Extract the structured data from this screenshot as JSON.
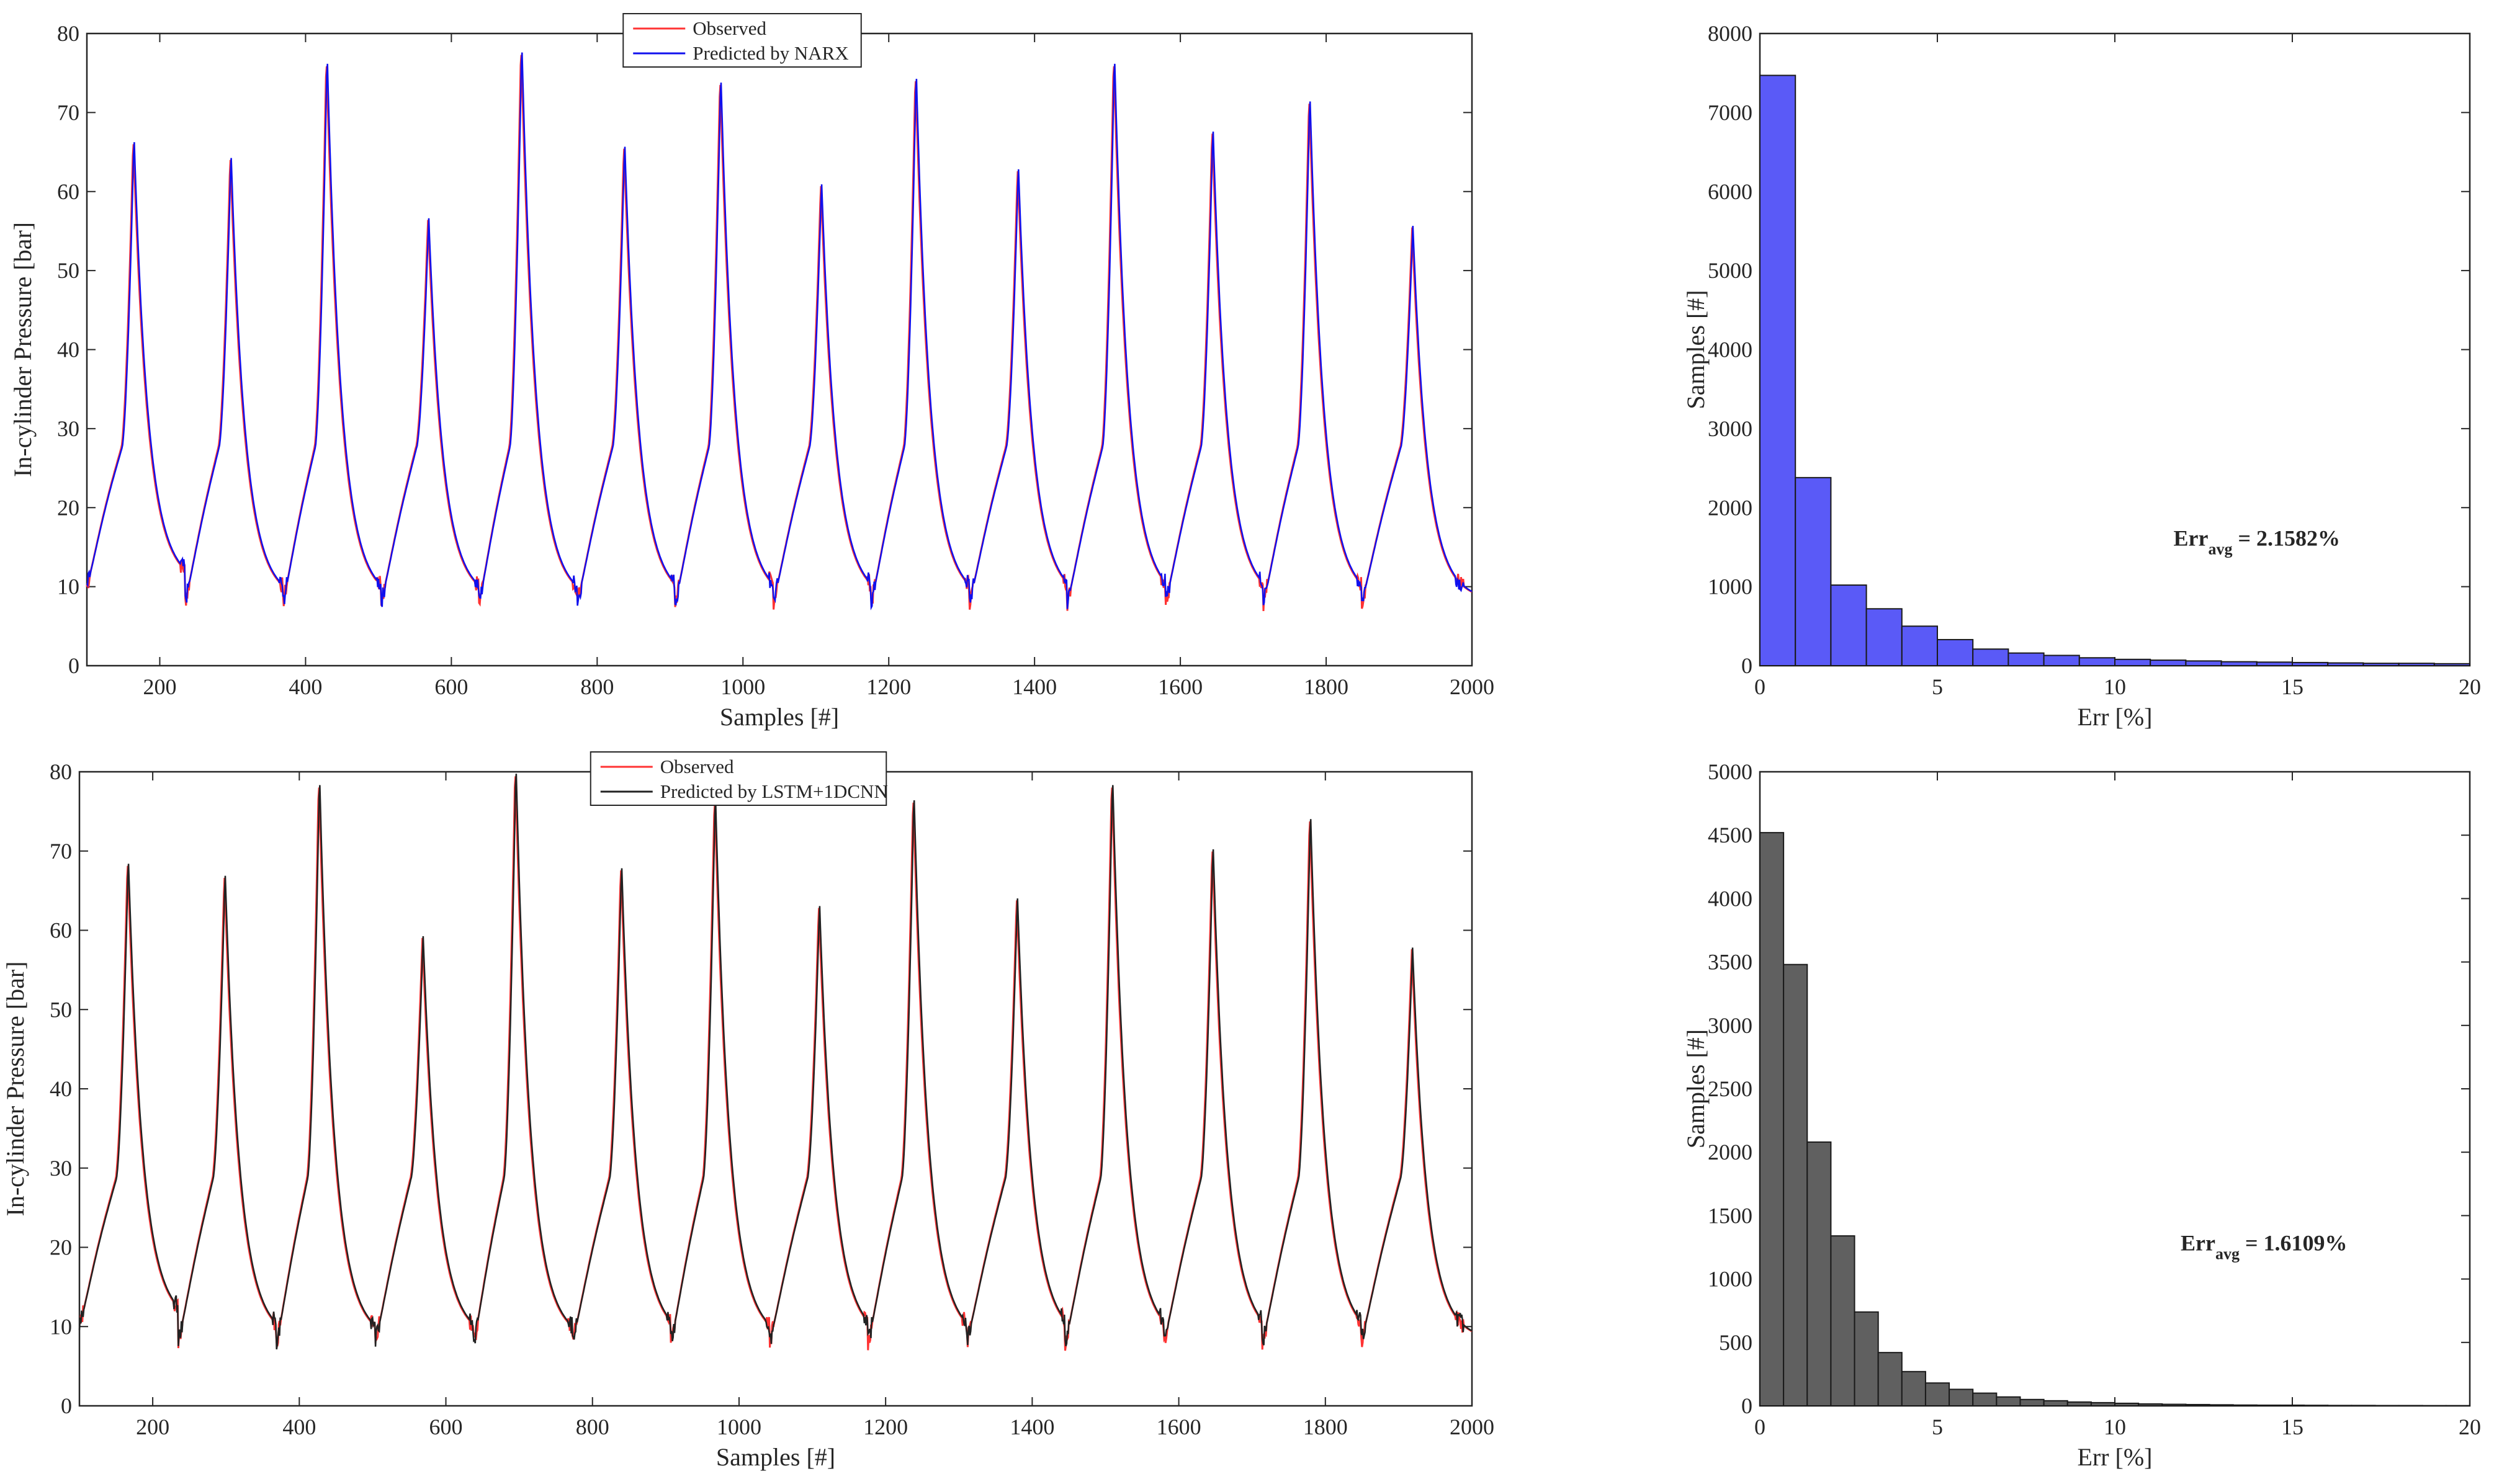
{
  "chart_data": [
    {
      "id": "p1",
      "type": "line",
      "xlabel": "Samples [#]",
      "ylabel": "In-cylinder Pressure [bar]",
      "xlim": [
        100,
        2000
      ],
      "ylim": [
        0,
        80
      ],
      "xticks": [
        200,
        400,
        600,
        800,
        1000,
        1200,
        1400,
        1600,
        1800,
        2000
      ],
      "yticks": [
        0,
        10,
        20,
        30,
        40,
        50,
        60,
        70,
        80
      ],
      "legend_position": "top-center",
      "colors": {
        "observed": "#ff3333",
        "predicted": "#1010ee"
      },
      "series": [
        {
          "name": "Observed",
          "color": "#ff3333"
        },
        {
          "name": "Predicted by NARX",
          "color": "#1010ee"
        }
      ],
      "cycle_start": 100,
      "cycle_period": 134.5,
      "peaks": [
        {
          "x": 163,
          "y": 64.5
        },
        {
          "x": 296,
          "y": 62
        },
        {
          "x": 428,
          "y": 74.5
        },
        {
          "x": 567,
          "y": 54
        },
        {
          "x": 695,
          "y": 76
        },
        {
          "x": 836,
          "y": 63.5
        },
        {
          "x": 968,
          "y": 72
        },
        {
          "x": 1106,
          "y": 58.5
        },
        {
          "x": 1236,
          "y": 72.5
        },
        {
          "x": 1376,
          "y": 60.5
        },
        {
          "x": 1508,
          "y": 74.5
        },
        {
          "x": 1643,
          "y": 65.5
        },
        {
          "x": 1776,
          "y": 69.5
        },
        {
          "x": 1917,
          "y": 53
        }
      ],
      "troughs": [
        10,
        8,
        8,
        8,
        8,
        8,
        8,
        8,
        8,
        8,
        8,
        8,
        8,
        8,
        8,
        8
      ],
      "shoulder_level": 27.5
    },
    {
      "id": "h1",
      "type": "bar",
      "subtype": "histogram",
      "xlabel": "Err [%]",
      "ylabel": "Samples [#]",
      "xlim": [
        0,
        20
      ],
      "ylim": [
        0,
        8000
      ],
      "xticks": [
        0,
        5,
        10,
        15,
        20
      ],
      "yticks": [
        0,
        1000,
        2000,
        3000,
        4000,
        5000,
        6000,
        7000,
        8000
      ],
      "bin_width": 1,
      "bin_start": 0,
      "values": [
        7470,
        2380,
        1020,
        720,
        500,
        330,
        210,
        160,
        130,
        100,
        80,
        70,
        60,
        50,
        45,
        40,
        35,
        30,
        30,
        25
      ],
      "color": "#5a5af7",
      "annotation": {
        "text": "Err",
        "sub": "avg",
        "suffix": " = 2.1582%"
      }
    },
    {
      "id": "p2",
      "type": "line",
      "xlabel": "Samples [#]",
      "ylabel": "In-cylinder Pressure [bar]",
      "xlim": [
        100,
        2000
      ],
      "ylim": [
        0,
        80
      ],
      "xticks": [
        200,
        400,
        600,
        800,
        1000,
        1200,
        1400,
        1600,
        1800,
        2000
      ],
      "yticks": [
        0,
        10,
        20,
        30,
        40,
        50,
        60,
        70,
        80
      ],
      "legend_position": "top-center",
      "colors": {
        "observed": "#ff3333",
        "predicted": "#222222"
      },
      "series": [
        {
          "name": "Observed",
          "color": "#ff3333"
        },
        {
          "name": "Predicted by LSTM+1DCNN",
          "color": "#222222"
        }
      ],
      "cycle_start": 100,
      "cycle_period": 134.5,
      "peaks": [
        {
          "x": 165,
          "y": 66.5
        },
        {
          "x": 297,
          "y": 64.5
        },
        {
          "x": 426,
          "y": 76.5
        },
        {
          "x": 567,
          "y": 56.5
        },
        {
          "x": 694,
          "y": 78
        },
        {
          "x": 838,
          "y": 65.5
        },
        {
          "x": 966,
          "y": 74.5
        },
        {
          "x": 1108,
          "y": 60.5
        },
        {
          "x": 1237,
          "y": 74.5
        },
        {
          "x": 1378,
          "y": 61.5
        },
        {
          "x": 1508,
          "y": 76.5
        },
        {
          "x": 1645,
          "y": 68
        },
        {
          "x": 1778,
          "y": 72
        },
        {
          "x": 1917,
          "y": 55
        }
      ],
      "troughs": [
        10,
        8,
        8,
        8,
        8,
        8,
        8,
        8,
        8,
        8,
        8,
        8,
        8,
        8,
        8,
        8
      ],
      "shoulder_level": 28.5
    },
    {
      "id": "h2",
      "type": "bar",
      "subtype": "histogram",
      "xlabel": "Err [%]",
      "ylabel": "Samples [#]",
      "xlim": [
        0,
        20
      ],
      "ylim": [
        0,
        5000
      ],
      "xticks": [
        0,
        5,
        10,
        15,
        20
      ],
      "yticks": [
        0,
        500,
        1000,
        1500,
        2000,
        2500,
        3000,
        3500,
        4000,
        4500,
        5000
      ],
      "bin_width": 0.6667,
      "bin_start": 0,
      "values": [
        4520,
        3480,
        2080,
        1340,
        740,
        420,
        270,
        180,
        130,
        100,
        70,
        50,
        40,
        30,
        25,
        20,
        15,
        12,
        10,
        8,
        6,
        5,
        5,
        4,
        3,
        3,
        2,
        2,
        1,
        1
      ],
      "color": "#606060",
      "annotation": {
        "text": "Err",
        "sub": "avg",
        "suffix": " = 1.6109%"
      }
    }
  ]
}
